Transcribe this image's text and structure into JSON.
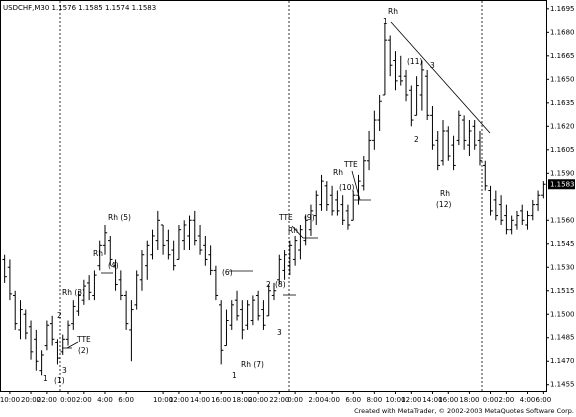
{
  "chart_data": {
    "type": "ohlc",
    "title": "USDCHF,M30  1.1576 1.1585 1.1574 1.1583",
    "footer": "Created with MetaTrader, © 2002-2003 MetaQuotes Software Corp.",
    "color": "#000000",
    "grid": false,
    "ylim": [
      1.1451,
      1.17
    ],
    "yticks": [
      {
        "value": 1.1695,
        "label": "1.1695"
      },
      {
        "value": 1.168,
        "label": "1.1680"
      },
      {
        "value": 1.1665,
        "label": "1.1665"
      },
      {
        "value": 1.165,
        "label": "1.1650"
      },
      {
        "value": 1.1635,
        "label": "1.1635"
      },
      {
        "value": 1.162,
        "label": "1.1620"
      },
      {
        "value": 1.1605,
        "label": "1.1605"
      },
      {
        "value": 1.159,
        "label": "1.1590"
      },
      {
        "value": 1.156,
        "label": "1.1560"
      },
      {
        "value": 1.1545,
        "label": "1.1545"
      },
      {
        "value": 1.153,
        "label": "1.1530"
      },
      {
        "value": 1.1515,
        "label": "1.1515"
      },
      {
        "value": 1.15,
        "label": "1.1500"
      },
      {
        "value": 1.1485,
        "label": "1.1485"
      },
      {
        "value": 1.147,
        "label": "1.1470"
      },
      {
        "value": 1.1455,
        "label": "1.1455"
      }
    ],
    "last_price": 1.1583,
    "categories": [
      null,
      "10:00",
      null,
      null,
      null,
      "20:00",
      null,
      null,
      "22:00",
      null,
      null,
      null,
      "0:00",
      null,
      null,
      "2:00",
      null,
      null,
      null,
      "4:00",
      null,
      null,
      null,
      "6:00",
      null,
      null,
      null,
      null,
      null,
      null,
      "10:00",
      null,
      null,
      "12:00",
      null,
      null,
      null,
      "14:00",
      null,
      null,
      null,
      "16:00",
      null,
      null,
      null,
      "18:00",
      null,
      null,
      "20:00",
      null,
      null,
      null,
      "22:00",
      null,
      null,
      "0:00",
      null,
      null,
      null,
      "2:00",
      null,
      null,
      "4:00",
      null,
      null,
      null,
      "6:00",
      null,
      null,
      null,
      "8:00",
      null,
      null,
      null,
      "10:00",
      null,
      null,
      "12:00",
      null,
      null,
      null,
      "14:00",
      null,
      null,
      "16:00",
      null,
      null,
      null,
      "18:00",
      null,
      null,
      null,
      "0:00",
      null,
      null,
      "2:00",
      null,
      null,
      null,
      "4:00",
      null,
      null,
      "6:00"
    ],
    "open": [
      1.1535,
      1.153,
      1.1512,
      1.149,
      1.15,
      1.1492,
      1.1484,
      1.1464,
      1.148,
      1.1494,
      1.1482,
      1.1476,
      1.1484,
      1.1494,
      1.1502,
      1.1509,
      1.152,
      1.1512,
      1.1531,
      1.1544,
      1.1547,
      1.1531,
      1.1522,
      1.1512,
      1.149,
      1.1506,
      1.1522,
      1.1531,
      1.1538,
      1.1547,
      1.1557,
      1.1547,
      1.1541,
      1.1535,
      1.1547,
      1.155,
      1.156,
      1.155,
      1.1544,
      1.1538,
      1.1528,
      1.1506,
      1.148,
      1.1493,
      1.1509,
      1.1503,
      1.1493,
      1.1496,
      1.1512,
      1.1503,
      1.1499,
      1.1512,
      1.1522,
      1.1528,
      1.1531,
      1.1535,
      1.1541,
      1.1547,
      1.1554,
      1.1563,
      1.157,
      1.1582,
      1.1576,
      1.1573,
      1.157,
      1.1566,
      1.156,
      1.1576,
      1.1582,
      1.1598,
      1.1611,
      1.1624,
      1.164,
      1.1675,
      1.1662,
      1.1652,
      1.1652,
      1.1643,
      1.1627,
      1.164,
      1.1652,
      1.1627,
      1.1611,
      1.1598,
      1.1617,
      1.1608,
      1.1611,
      1.1624,
      1.1608,
      1.162,
      1.1611,
      1.1595,
      1.1579,
      1.1573,
      1.157,
      1.1563,
      1.1554,
      1.1557,
      1.1566,
      1.1557,
      1.1563,
      1.157,
      1.1576
    ],
    "high": [
      1.1538,
      1.1535,
      1.1515,
      1.1509,
      1.1503,
      1.1496,
      1.149,
      1.1477,
      1.1496,
      1.1499,
      1.1484,
      1.1487,
      1.1496,
      1.1509,
      1.1515,
      1.1522,
      1.1525,
      1.1528,
      1.1547,
      1.1557,
      1.155,
      1.1535,
      1.1528,
      1.1515,
      1.1509,
      1.1528,
      1.1541,
      1.1547,
      1.1554,
      1.1566,
      1.1557,
      1.1554,
      1.1547,
      1.1557,
      1.156,
      1.1563,
      1.1566,
      1.1557,
      1.155,
      1.1544,
      1.1531,
      1.1509,
      1.1503,
      1.1509,
      1.1515,
      1.1509,
      1.1509,
      1.1512,
      1.1515,
      1.1509,
      1.1519,
      1.152,
      1.1538,
      1.1541,
      1.1547,
      1.155,
      1.1557,
      1.1563,
      1.157,
      1.1579,
      1.1589,
      1.1585,
      1.1582,
      1.1579,
      1.1576,
      1.157,
      1.1579,
      1.1589,
      1.1601,
      1.1617,
      1.163,
      1.164,
      1.1686,
      1.1678,
      1.1668,
      1.1665,
      1.1656,
      1.1646,
      1.1652,
      1.1662,
      1.1656,
      1.1633,
      1.1617,
      1.1624,
      1.162,
      1.1614,
      1.163,
      1.1627,
      1.1624,
      1.1624,
      1.1617,
      1.1598,
      1.1582,
      1.1579,
      1.1576,
      1.157,
      1.1563,
      1.1566,
      1.157,
      1.1566,
      1.1573,
      1.1579,
      1.1585
    ],
    "low": [
      1.152,
      1.1509,
      1.149,
      1.1484,
      1.1484,
      1.1471,
      1.1464,
      1.1461,
      1.1477,
      1.148,
      1.1468,
      1.1474,
      1.148,
      1.149,
      1.1499,
      1.1506,
      1.1509,
      1.1509,
      1.1528,
      1.1538,
      1.1531,
      1.1515,
      1.1509,
      1.149,
      1.147,
      1.1503,
      1.1515,
      1.1522,
      1.1535,
      1.1541,
      1.1538,
      1.1535,
      1.1528,
      1.1535,
      1.1541,
      1.1541,
      1.1544,
      1.1538,
      1.1531,
      1.1525,
      1.1509,
      1.1468,
      1.148,
      1.149,
      1.1496,
      1.1484,
      1.149,
      1.1493,
      1.1496,
      1.149,
      1.1499,
      1.1509,
      1.1519,
      1.1522,
      1.1525,
      1.1531,
      1.1535,
      1.1544,
      1.155,
      1.1557,
      1.1566,
      1.1566,
      1.1563,
      1.1563,
      1.1557,
      1.1554,
      1.156,
      1.157,
      1.1579,
      1.1592,
      1.1605,
      1.1617,
      1.164,
      1.1652,
      1.1643,
      1.1646,
      1.1636,
      1.162,
      1.1627,
      1.163,
      1.1624,
      1.1605,
      1.1592,
      1.1595,
      1.1598,
      1.1592,
      1.1608,
      1.1605,
      1.1601,
      1.1605,
      1.1595,
      1.1579,
      1.1563,
      1.156,
      1.1557,
      1.1551,
      1.1551,
      1.1554,
      1.1557,
      1.1554,
      1.156,
      1.1566,
      1.1574
    ],
    "close": [
      1.1524,
      1.1513,
      1.1494,
      1.1503,
      1.1488,
      1.1476,
      1.147,
      1.1474,
      1.1493,
      1.1484,
      1.1472,
      1.1484,
      1.1493,
      1.1505,
      1.1512,
      1.1518,
      1.1514,
      1.1525,
      1.1544,
      1.1552,
      1.1535,
      1.1519,
      1.1512,
      1.1494,
      1.1503,
      1.1525,
      1.1538,
      1.1544,
      1.155,
      1.156,
      1.1544,
      1.1538,
      1.1531,
      1.1554,
      1.1557,
      1.156,
      1.1547,
      1.1541,
      1.1535,
      1.1528,
      1.1512,
      1.1477,
      1.1496,
      1.1506,
      1.1499,
      1.149,
      1.1506,
      1.1509,
      1.1499,
      1.1493,
      1.1515,
      1.1515,
      1.1535,
      1.1538,
      1.1544,
      1.1547,
      1.1554,
      1.156,
      1.1566,
      1.1576,
      1.1585,
      1.157,
      1.1566,
      1.1566,
      1.156,
      1.1557,
      1.1576,
      1.1585,
      1.1598,
      1.1611,
      1.1624,
      1.1636,
      1.1675,
      1.1659,
      1.1649,
      1.1649,
      1.164,
      1.1624,
      1.1646,
      1.1656,
      1.1627,
      1.1608,
      1.1595,
      1.1617,
      1.1601,
      1.1595,
      1.1627,
      1.1611,
      1.1617,
      1.1608,
      1.1598,
      1.1582,
      1.1566,
      1.1563,
      1.156,
      1.1554,
      1.156,
      1.1563,
      1.156,
      1.1563,
      1.157,
      1.1576,
      1.1583
    ],
    "annotations": [
      "Rh",
      "1",
      "(11)",
      "3",
      "2",
      "Rh",
      "(12)",
      "TTE",
      "(10)",
      "Rh",
      "TTE",
      "(9)",
      "Rh",
      "Rh (5)",
      "Rh",
      "(4)",
      "Rh (3)",
      "2",
      "TTE",
      "(2)",
      "1",
      "3",
      "(1)",
      "(6)",
      "2",
      "(8)",
      "3",
      "1",
      "Rh (7)"
    ]
  }
}
